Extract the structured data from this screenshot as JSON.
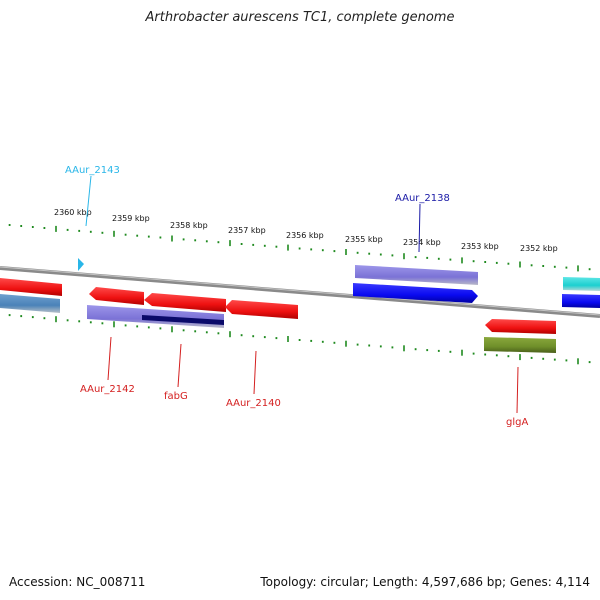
{
  "title": "Arthrobacter aurescens TC1, complete genome",
  "footer": {
    "accession": "Accession: NC_008711",
    "summary": "Topology: circular; Length: 4,597,686 bp; Genes: 4,114"
  },
  "ticks": [
    {
      "label": "2360 kbp"
    },
    {
      "label": "2359 kbp"
    },
    {
      "label": "2358 kbp"
    },
    {
      "label": "2357 kbp"
    },
    {
      "label": "2356 kbp"
    },
    {
      "label": "2355 kbp"
    },
    {
      "label": "2354 kbp"
    },
    {
      "label": "2353 kbp"
    },
    {
      "label": "2352 kbp"
    }
  ],
  "gene_labels": [
    {
      "name": "AAur_2143",
      "color": "#29b6e8"
    },
    {
      "name": "AAur_2138",
      "color": "#1a1aa6"
    },
    {
      "name": "AAur_2142",
      "color": "#d42020"
    },
    {
      "name": "fabG",
      "color": "#d42020"
    },
    {
      "name": "AAur_2140",
      "color": "#d42020"
    },
    {
      "name": "glgA",
      "color": "#d42020"
    }
  ],
  "colors": {
    "backbone": "#8a8a8a",
    "tick": "#1f8a1f",
    "red_feature": "#ee1111",
    "blue_feature": "#0a0af0",
    "lavender_feature": "#7b72d6",
    "steel_feature": "#4a82b8",
    "cyan_feature": "#1ccfcf",
    "olive_feature": "#6f8f2a",
    "navy_feature": "#0a0a6a"
  }
}
